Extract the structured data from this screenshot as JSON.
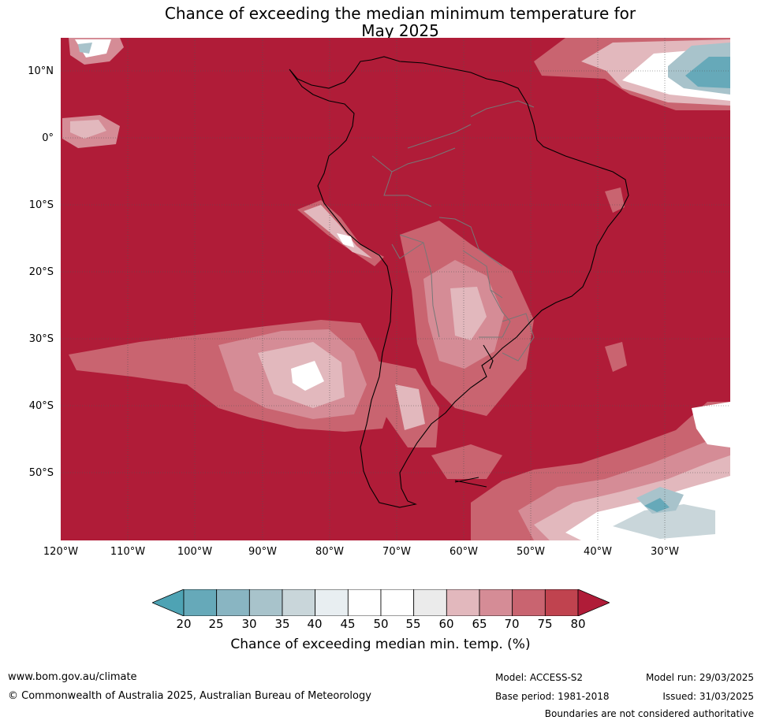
{
  "title": {
    "line1": "Chance of exceeding the median minimum temperature for",
    "line2": "May 2025"
  },
  "map": {
    "lat_labels": [
      "10°N",
      "0°",
      "10°S",
      "20°S",
      "30°S",
      "40°S",
      "50°S"
    ],
    "lon_labels": [
      "120°W",
      "110°W",
      "100°W",
      "90°W",
      "80°W",
      "70°W",
      "60°W",
      "50°W",
      "40°W",
      "30°W"
    ],
    "colors": {
      "ocean_high": "#b01c38",
      "land_high": "#b01c38",
      "high_75": "#c0434f",
      "high_70": "#c96470",
      "high_65": "#d58c96",
      "high_60": "#e2b8bd",
      "neutral": "#ffffff",
      "low_45": "#e8eef1",
      "low_35": "#c9d6da",
      "low_30": "#a8c3cb",
      "low_25": "#89b5c2",
      "low_20": "#66a9b9",
      "coast": "#000000",
      "border": "#777777"
    }
  },
  "colorbar": {
    "ticks": [
      "20",
      "25",
      "30",
      "35",
      "40",
      "45",
      "50",
      "55",
      "60",
      "65",
      "70",
      "75",
      "80"
    ],
    "colors": [
      "#66a9b9",
      "#89b5c2",
      "#a8c3cb",
      "#c9d6da",
      "#e8eef1",
      "#ffffff",
      "#ffffff",
      "#ebebeb",
      "#e2b8bd",
      "#d58c96",
      "#c96470",
      "#c0434f"
    ],
    "under_color": "#4ea3b4",
    "over_color": "#b01c38",
    "label": "Chance of exceeding median min. temp. (%)"
  },
  "footer": {
    "url": "www.bom.gov.au/climate",
    "copyright": "© Commonwealth of Australia 2025, Australian Bureau of Meteorology",
    "model": "Model: ACCESS-S2",
    "base_period": "Base period: 1981-2018",
    "model_run": "Model run: 29/03/2025",
    "issued": "Issued: 31/03/2025",
    "disclaimer": "Boundaries are not considered authoritative"
  }
}
